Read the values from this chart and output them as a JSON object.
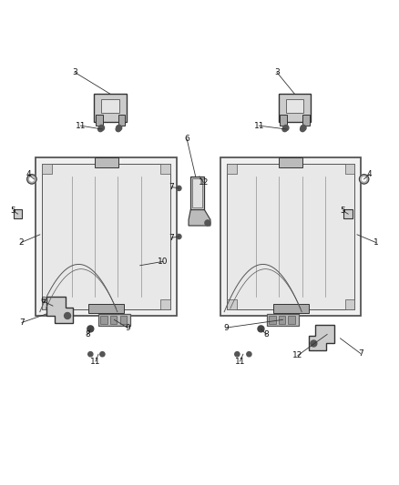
{
  "bg_color": "#ffffff",
  "line_color": "#555555",
  "dark_color": "#333333",
  "fig_width": 4.38,
  "fig_height": 5.33,
  "dpi": 100
}
